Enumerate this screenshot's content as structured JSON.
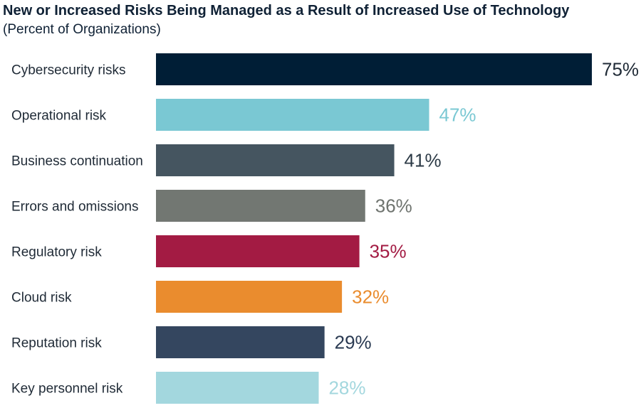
{
  "chart_data": {
    "type": "bar",
    "orientation": "horizontal",
    "title": "New or Increased Risks Being Managed as a Result of Increased Use of Technology",
    "subtitle": "(Percent of Organizations)",
    "categories": [
      "Cybersecurity risks",
      "Operational risk",
      "Business continuation",
      "Errors and omissions",
      "Regulatory risk",
      "Cloud risk",
      "Reputation risk",
      "Key personnel risk"
    ],
    "values": [
      75,
      47,
      41,
      36,
      35,
      32,
      29,
      28
    ],
    "value_labels": [
      "75%",
      "47%",
      "41%",
      "36%",
      "35%",
      "32%",
      "29%",
      "28%"
    ],
    "bar_colors": [
      "#001e36",
      "#7ac8d3",
      "#455560",
      "#727772",
      "#a31b43",
      "#ea8c2e",
      "#34465f",
      "#a3d7de"
    ],
    "label_colors": [
      "#1f2a36",
      "#7ac8d3",
      "#2c3a46",
      "#6f746f",
      "#a31b43",
      "#ea8c2e",
      "#2a3a52",
      "#a3d7de"
    ],
    "xlim": [
      0,
      75
    ],
    "grid": false,
    "legend": "none"
  }
}
